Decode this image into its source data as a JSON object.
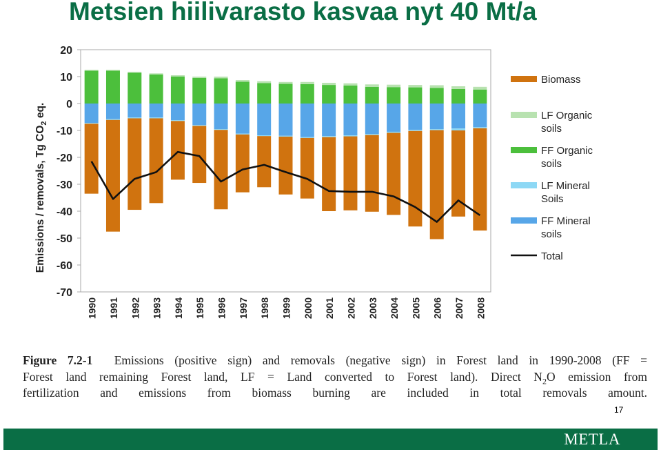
{
  "slide": {
    "title": "Metsien hiilivarasto kasvaa nyt 40 Mt/a",
    "page_number": "17",
    "footer_logo": "METLA"
  },
  "caption": {
    "label": "Figure 7.2-1",
    "line1": "Emissions (positive sign) and removals (negative sign) in Forest land in 1990-2008 (FF =",
    "line2a": "Forest land remaining Forest land, LF = Land converted to Forest land). Direct N",
    "line2_sub": "2",
    "line2b": "O emission from",
    "line3": "fertilization and emissions from biomass burning are included in total removals amount."
  },
  "colors": {
    "title": "#0a6e45",
    "footer": "#0a6e45",
    "biomass": "#d0730f",
    "lf_organic": "#b8e2b0",
    "ff_organic": "#4cbf3c",
    "lf_mineral": "#8dd8f5",
    "ff_mineral": "#57a6e8",
    "total": "#111111"
  },
  "chart_data": {
    "type": "bar",
    "stacked": true,
    "categories": [
      "1990",
      "1991",
      "1992",
      "1993",
      "1994",
      "1995",
      "1996",
      "1997",
      "1998",
      "1999",
      "2000",
      "2001",
      "2002",
      "2003",
      "2004",
      "2005",
      "2006",
      "2007",
      "2008"
    ],
    "ylabel_parts": [
      "Emissions / removals, Tg CO",
      "2",
      " eq."
    ],
    "ylim": [
      -70,
      20
    ],
    "yticks": [
      20,
      10,
      0,
      -10,
      -20,
      -30,
      -40,
      -50,
      -60,
      -70
    ],
    "grid": false,
    "legend_position": "right",
    "series": [
      {
        "name": "Biomass",
        "key": "biomass",
        "values": [
          -26.0,
          -41.5,
          -34.0,
          -31.5,
          -21.8,
          -21.2,
          -29.5,
          -21.5,
          -19.0,
          -21.5,
          -22.5,
          -27.5,
          -27.5,
          -28.5,
          -30.5,
          -35.5,
          -40.5,
          -32.0,
          -38.0
        ]
      },
      {
        "name": "LF Organic soils",
        "key": "lf_organic",
        "values": [
          0.3,
          0.3,
          0.4,
          0.4,
          0.5,
          0.5,
          0.6,
          0.6,
          0.7,
          0.7,
          0.8,
          0.8,
          0.8,
          0.9,
          0.9,
          0.9,
          1.0,
          1.0,
          1.0
        ]
      },
      {
        "name": "FF Organic soils",
        "key": "ff_organic",
        "values": [
          12.2,
          12.2,
          11.4,
          10.8,
          10.0,
          9.5,
          9.4,
          8.1,
          7.6,
          7.3,
          7.2,
          6.9,
          6.7,
          6.2,
          6.1,
          6.0,
          5.8,
          5.4,
          5.2
        ]
      },
      {
        "name": "LF Mineral Soils",
        "key": "lf_mineral",
        "values": [
          -0.3,
          -0.3,
          -0.3,
          -0.3,
          -0.3,
          -0.3,
          -0.3,
          -0.3,
          -0.3,
          -0.3,
          -0.3,
          -0.4,
          -0.4,
          -0.4,
          -0.4,
          -0.4,
          -0.4,
          -0.7,
          -0.4
        ]
      },
      {
        "name": "FF Mineral soils",
        "key": "ff_mineral",
        "values": [
          -7.2,
          -5.8,
          -5.2,
          -5.2,
          -6.2,
          -8.0,
          -9.5,
          -11.2,
          -11.8,
          -12.0,
          -12.5,
          -12.1,
          -11.8,
          -11.3,
          -10.5,
          -9.8,
          -9.5,
          -9.3,
          -8.8
        ]
      },
      {
        "name": "Total",
        "key": "total",
        "type": "line",
        "values": [
          -21.5,
          -35.5,
          -28.0,
          -25.5,
          -18.0,
          -19.5,
          -29.0,
          -24.5,
          -22.8,
          -25.5,
          -28.0,
          -32.5,
          -32.8,
          -32.8,
          -34.5,
          -38.5,
          -44.0,
          -36.0,
          -41.5
        ]
      }
    ]
  }
}
